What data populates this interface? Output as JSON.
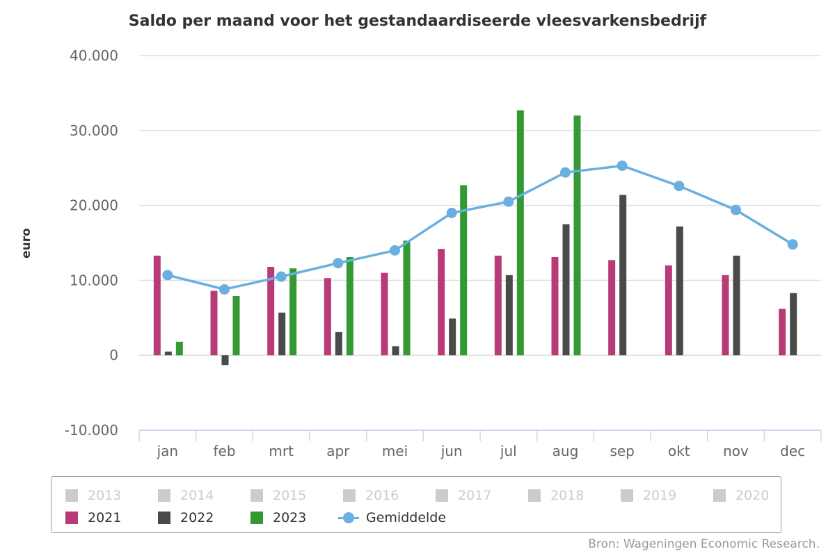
{
  "chart_data": {
    "type": "bar",
    "title": "Saldo per maand voor het gestandaardiseerde vleesvarkensbedrijf",
    "ylabel": "euro",
    "xlabel": "",
    "ylim": [
      -10000,
      40000
    ],
    "yticks": [
      -10000,
      0,
      10000,
      20000,
      30000,
      40000
    ],
    "ytick_labels": [
      "-10.000",
      "0",
      "10.000",
      "20.000",
      "30.000",
      "40.000"
    ],
    "categories": [
      "jan",
      "feb",
      "mrt",
      "apr",
      "mei",
      "jun",
      "jul",
      "aug",
      "sep",
      "okt",
      "nov",
      "dec"
    ],
    "series": [
      {
        "name": "2021",
        "type": "bar",
        "color": "#b83b78",
        "values": [
          13300,
          8600,
          11800,
          10300,
          11000,
          14200,
          13300,
          13100,
          12700,
          12000,
          10700,
          6200
        ]
      },
      {
        "name": "2022",
        "type": "bar",
        "color": "#4a4a4a",
        "values": [
          500,
          -1300,
          5700,
          3100,
          1200,
          4900,
          10700,
          17500,
          21400,
          17200,
          13300,
          8300
        ]
      },
      {
        "name": "2023",
        "type": "bar",
        "color": "#339933",
        "values": [
          1800,
          7900,
          11600,
          13100,
          15300,
          22700,
          32700,
          32000,
          null,
          null,
          null,
          null
        ]
      },
      {
        "name": "Gemiddelde",
        "type": "line",
        "color": "#6aafe0",
        "values": [
          10700,
          8800,
          10500,
          12300,
          14000,
          19000,
          20500,
          24400,
          25300,
          22600,
          19400,
          14800
        ]
      }
    ],
    "hidden_series": [
      "2013",
      "2014",
      "2015",
      "2016",
      "2017",
      "2018",
      "2019",
      "2020"
    ],
    "grid": true,
    "legend": "bottom"
  },
  "source": "Bron: Wageningen Economic Research."
}
